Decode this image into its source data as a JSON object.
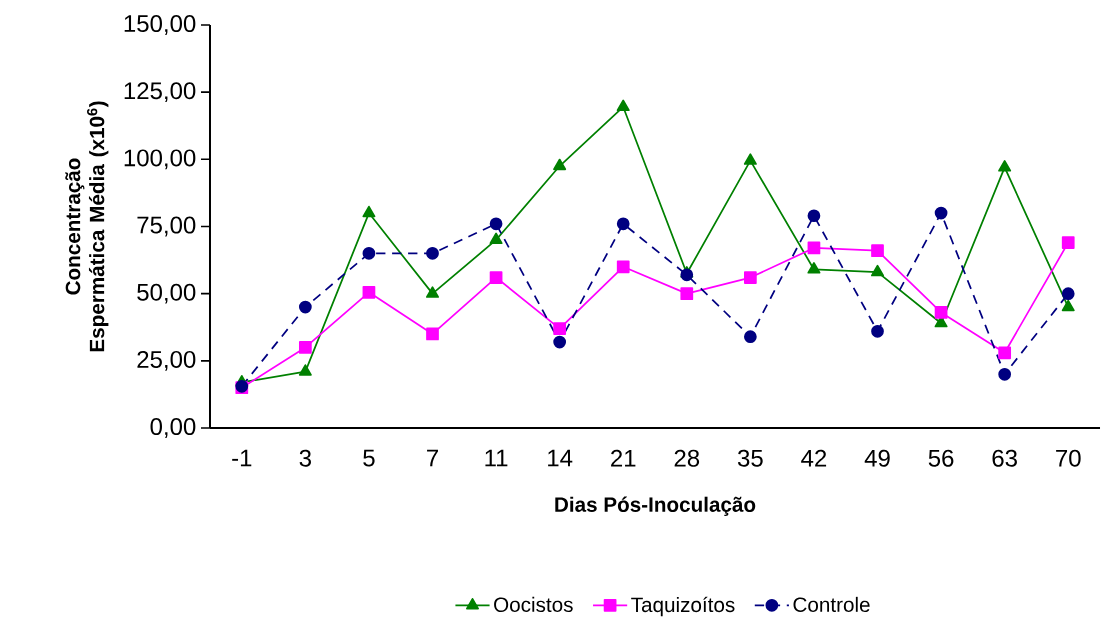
{
  "chart_data": {
    "type": "line",
    "xlabel": "Dias Pós-Inoculação",
    "ylabel": "Concentração Espermática Média (x10$^{6}$)",
    "categories": [
      "-1",
      "3",
      "5",
      "7",
      "11",
      "14",
      "21",
      "28",
      "35",
      "42",
      "49",
      "56",
      "63",
      "70"
    ],
    "series": [
      {
        "name": "Oocistos",
        "color": "#008000",
        "marker": "triangle",
        "line_style": "solid",
        "values": [
          17,
          21,
          80,
          50,
          70,
          97.5,
          119.5,
          57.5,
          99.5,
          59,
          58,
          39,
          97,
          45
        ]
      },
      {
        "name": "Taquizoítos",
        "color": "#ff00ff",
        "marker": "square",
        "line_style": "solid",
        "values": [
          15,
          30,
          50.5,
          35,
          56,
          37,
          60,
          50,
          56,
          67,
          66,
          43,
          28,
          69
        ]
      },
      {
        "name": "Controle",
        "color": "#000080",
        "marker": "circle",
        "line_style": "dashed",
        "values": [
          15.5,
          45,
          65,
          65,
          76,
          32,
          76,
          57,
          34,
          79,
          36,
          80,
          20,
          50
        ]
      }
    ],
    "ylim": [
      0,
      150
    ],
    "yticks": [
      {
        "value": 0,
        "label": "0,00"
      },
      {
        "value": 25,
        "label": "25,00"
      },
      {
        "value": 50,
        "label": "50,00"
      },
      {
        "value": 75,
        "label": "75,00"
      },
      {
        "value": 100,
        "label": "100,00"
      },
      {
        "value": 125,
        "label": "125,00"
      },
      {
        "value": 150,
        "label": "150,00"
      }
    ],
    "legend": "bottom"
  }
}
